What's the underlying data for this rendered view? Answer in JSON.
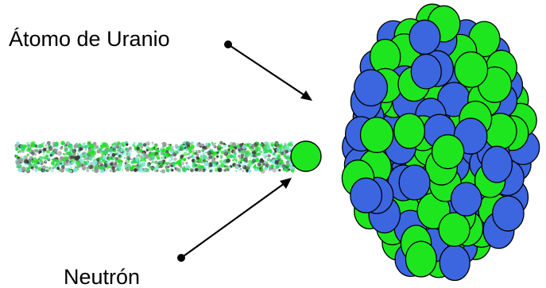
{
  "labels": {
    "uranium": "Átomo de Uranio",
    "neutron": "Neutrón"
  },
  "colors": {
    "proton": "#3b66e0",
    "neutron": "#1ee61e",
    "outline": "#000000",
    "trail": [
      "#1ee61e",
      "#7fe8e0",
      "#2fd06a",
      "#3a3a3a",
      "#9a9a9a"
    ]
  },
  "icons": {
    "nucleus": "uranium-nucleus",
    "neutron": "neutron-particle",
    "trail": "neutron-trail"
  }
}
